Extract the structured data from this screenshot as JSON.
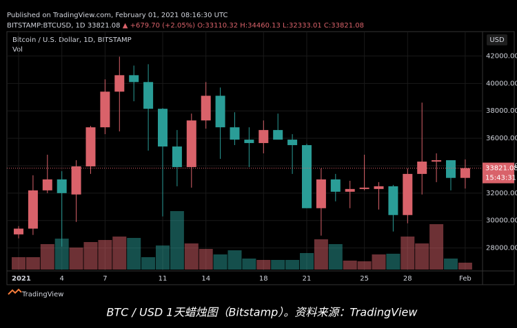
{
  "header": {
    "published": "Published on TradingView.com, February 01, 2021 08:16:30 UTC",
    "symbol": "BITSTAMP:BTCUSD, 1D",
    "last": "33821.08",
    "change": "▲ +679.70 (+2.05%)",
    "ohlc": [
      "O:33110.32",
      "H:34460.13",
      "L:32333.01",
      "C:33821.08"
    ]
  },
  "chart_data": {
    "type": "candlestick",
    "title": "Bitcoin / U.S. Dollar, 1D, BITSTAMP",
    "volume_label": "Vol",
    "currency": "USD",
    "x": [
      "2021-01-01",
      "2021-01-02",
      "2021-01-03",
      "2021-01-04",
      "2021-01-05",
      "2021-01-06",
      "2021-01-07",
      "2021-01-08",
      "2021-01-09",
      "2021-01-10",
      "2021-01-11",
      "2021-01-12",
      "2021-01-13",
      "2021-01-14",
      "2021-01-15",
      "2021-01-16",
      "2021-01-17",
      "2021-01-18",
      "2021-01-19",
      "2021-01-20",
      "2021-01-21",
      "2021-01-22",
      "2021-01-23",
      "2021-01-24",
      "2021-01-25",
      "2021-01-26",
      "2021-01-27",
      "2021-01-28",
      "2021-01-29",
      "2021-01-30",
      "2021-01-31",
      "2021-02-01"
    ],
    "open": [
      28990,
      29410,
      32200,
      33000,
      31900,
      33950,
      36800,
      39400,
      40600,
      40100,
      38150,
      35400,
      33900,
      37300,
      39100,
      36800,
      35900,
      35650,
      36600,
      35900,
      35500,
      30900,
      33000,
      32100,
      32300,
      32300,
      32500,
      30400,
      33400,
      34300,
      34400,
      33110.32
    ],
    "high": [
      29600,
      33300,
      34800,
      33600,
      34400,
      36900,
      40300,
      41950,
      41300,
      41400,
      38200,
      36600,
      37800,
      40100,
      39700,
      37900,
      36800,
      37300,
      37800,
      36300,
      35600,
      33800,
      33400,
      32900,
      34800,
      32800,
      32600,
      33800,
      38600,
      34900,
      34400,
      34460.13
    ],
    "low": [
      28700,
      28950,
      32000,
      28100,
      29900,
      33400,
      36300,
      36500,
      38700,
      35100,
      30300,
      32500,
      32400,
      36700,
      34500,
      35500,
      33900,
      34900,
      35900,
      33400,
      31000,
      28900,
      31400,
      30900,
      32200,
      30800,
      29200,
      29800,
      31900,
      32800,
      32200,
      32333.01
    ],
    "close": [
      29410,
      32200,
      33000,
      32000,
      33950,
      36800,
      39400,
      40600,
      40100,
      38150,
      35400,
      33900,
      37300,
      39100,
      36800,
      35900,
      35650,
      36600,
      35900,
      35500,
      30900,
      33000,
      32100,
      32300,
      32400,
      32500,
      30400,
      33400,
      34300,
      34400,
      33110,
      33821.08
    ],
    "volume": [
      9000,
      9000,
      18500,
      22500,
      16000,
      20000,
      21500,
      24000,
      23000,
      9000,
      17500,
      42500,
      19000,
      15000,
      11000,
      14000,
      8000,
      7000,
      7000,
      7000,
      12000,
      22000,
      18500,
      6500,
      6000,
      11000,
      11500,
      24000,
      19000,
      33000,
      8000,
      5000
    ],
    "up_color": "#d9626a",
    "down_color": "#2a9d97",
    "ylim": [
      26325,
      43777
    ],
    "yticks": [
      {
        "value": 28000,
        "label": "28000.00"
      },
      {
        "value": 30000,
        "label": "30000.00"
      },
      {
        "value": 32000,
        "label": "32000.00"
      },
      {
        "value": 34000,
        "label": "34000.00"
      },
      {
        "value": 36000,
        "label": "36000.00"
      },
      {
        "value": 38000,
        "label": "38000.00"
      },
      {
        "value": 40000,
        "label": "40000.00"
      },
      {
        "value": 42000,
        "label": "42000.00"
      }
    ],
    "xticks": [
      {
        "value": "2021-01-01",
        "label": "2021"
      },
      {
        "value": "2021-01-04",
        "label": "4"
      },
      {
        "value": "2021-01-07",
        "label": "7"
      },
      {
        "value": "2021-01-11",
        "label": "11"
      },
      {
        "value": "2021-01-14",
        "label": "14"
      },
      {
        "value": "2021-01-18",
        "label": "18"
      },
      {
        "value": "2021-01-21",
        "label": "21"
      },
      {
        "value": "2021-01-25",
        "label": "25"
      },
      {
        "value": "2021-01-28",
        "label": "28"
      },
      {
        "value": "2021-02-01",
        "label": "Feb"
      }
    ],
    "last_price": 33821.08,
    "countdown": "15:43:31",
    "grid": true
  },
  "footer": {
    "brand": "TradingView",
    "caption": "BTC / USD 1天蜡烛图（Bitstamp）。资料来源：TradingView"
  }
}
